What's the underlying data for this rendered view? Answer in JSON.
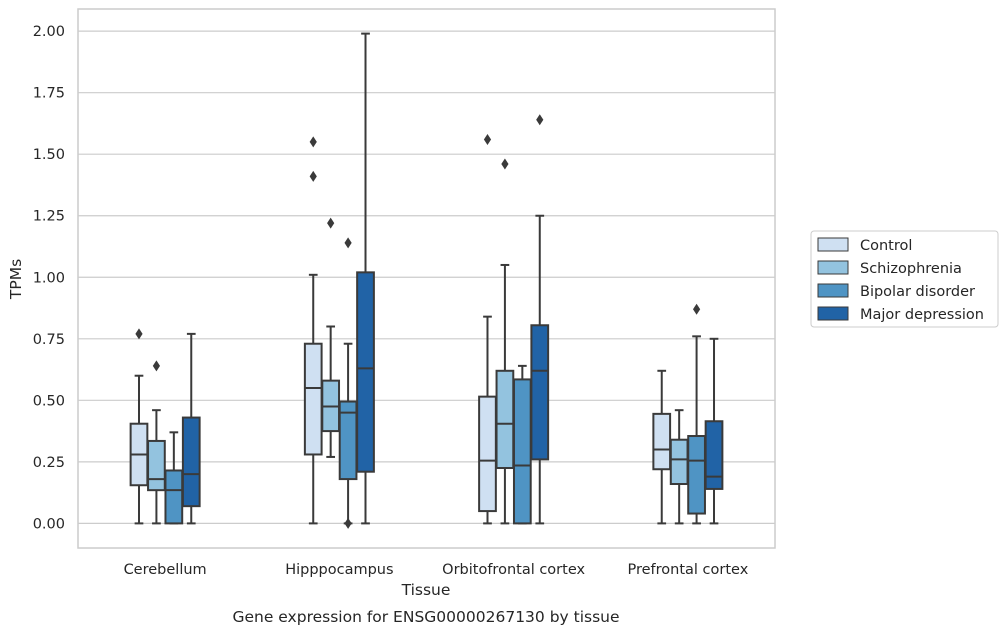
{
  "chart_data": {
    "type": "box",
    "title": "",
    "caption": "Gene expression for ENSG00000267130 by tissue",
    "xlabel": "Tissue",
    "ylabel": "TPMs",
    "ylim": [
      -0.1,
      2.09
    ],
    "yticks": [
      0.0,
      0.25,
      0.5,
      0.75,
      1.0,
      1.25,
      1.5,
      1.75,
      2.0
    ],
    "ytick_labels": [
      "0.00",
      "0.25",
      "0.50",
      "0.75",
      "1.00",
      "1.25",
      "1.50",
      "1.75",
      "2.00"
    ],
    "grid": "horizontal",
    "legend_position": "right",
    "categories": [
      "Cerebellum",
      "Hipppocampus",
      "Orbitofrontal cortex",
      "Prefrontal cortex"
    ],
    "series": [
      {
        "name": "Control",
        "color": "#cfe0f2",
        "boxes": [
          {
            "min": 0.0,
            "q1": 0.155,
            "median": 0.28,
            "q3": 0.405,
            "max": 0.6,
            "outliers": [
              0.77
            ]
          },
          {
            "min": 0.0,
            "q1": 0.28,
            "median": 0.55,
            "q3": 0.73,
            "max": 1.01,
            "outliers": [
              1.41,
              1.55
            ]
          },
          {
            "min": 0.0,
            "q1": 0.05,
            "median": 0.255,
            "q3": 0.515,
            "max": 0.84,
            "outliers": [
              1.56
            ]
          },
          {
            "min": 0.0,
            "q1": 0.22,
            "median": 0.3,
            "q3": 0.445,
            "max": 0.62,
            "outliers": []
          }
        ]
      },
      {
        "name": "Schizophrenia",
        "color": "#93c3df",
        "boxes": [
          {
            "min": 0.0,
            "q1": 0.135,
            "median": 0.18,
            "q3": 0.335,
            "max": 0.46,
            "outliers": [
              0.64
            ]
          },
          {
            "min": 0.27,
            "q1": 0.375,
            "median": 0.475,
            "q3": 0.58,
            "max": 0.8,
            "outliers": [
              1.22
            ]
          },
          {
            "min": 0.0,
            "q1": 0.225,
            "median": 0.405,
            "q3": 0.62,
            "max": 1.05,
            "outliers": [
              1.46
            ]
          },
          {
            "min": 0.0,
            "q1": 0.16,
            "median": 0.26,
            "q3": 0.34,
            "max": 0.46,
            "outliers": []
          }
        ]
      },
      {
        "name": "Bipolar disorder",
        "color": "#4f94c4",
        "boxes": [
          {
            "min": 0.0,
            "q1": 0.0,
            "median": 0.135,
            "q3": 0.215,
            "max": 0.37,
            "outliers": []
          },
          {
            "min": 0.0,
            "q1": 0.18,
            "median": 0.45,
            "q3": 0.495,
            "max": 0.73,
            "outliers": [
              0.0,
              1.14
            ]
          },
          {
            "min": 0.0,
            "q1": 0.0,
            "median": 0.235,
            "q3": 0.585,
            "max": 0.64,
            "outliers": []
          },
          {
            "min": 0.0,
            "q1": 0.04,
            "median": 0.255,
            "q3": 0.355,
            "max": 0.76,
            "outliers": [
              0.87
            ]
          }
        ]
      },
      {
        "name": "Major depression",
        "color": "#2163a6",
        "boxes": [
          {
            "min": 0.0,
            "q1": 0.07,
            "median": 0.2,
            "q3": 0.43,
            "max": 0.77,
            "outliers": []
          },
          {
            "min": 0.0,
            "q1": 0.21,
            "median": 0.63,
            "q3": 1.02,
            "max": 1.99,
            "outliers": []
          },
          {
            "min": 0.0,
            "q1": 0.26,
            "median": 0.62,
            "q3": 0.805,
            "max": 1.25,
            "outliers": [
              1.64
            ]
          },
          {
            "min": 0.0,
            "q1": 0.14,
            "median": 0.19,
            "q3": 0.415,
            "max": 0.75,
            "outliers": []
          }
        ]
      }
    ]
  }
}
